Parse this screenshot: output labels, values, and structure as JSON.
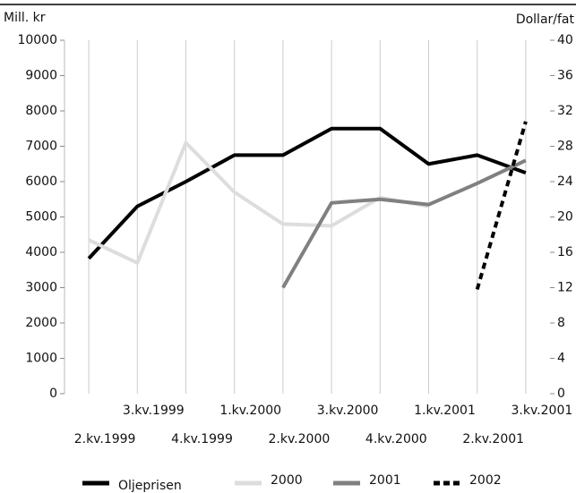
{
  "chart_data": {
    "type": "line",
    "y_label": "Mill. kr",
    "y2_label": "Dollar/fat",
    "categories": [
      "2.kv.1999",
      "3.kv.1999",
      "4.kv.1999",
      "1.kv.2000",
      "2.kv.2000",
      "3.kv.2000",
      "4.kv.2000",
      "1.kv.2001",
      "2.kv.2001",
      "3.kv.2001"
    ],
    "series": [
      {
        "name": "Oljeprisen",
        "color": "#000000",
        "axis": "y2",
        "values": [
          15.3,
          21.2,
          24,
          27,
          27,
          30,
          30,
          26,
          27,
          25
        ]
      },
      {
        "name": "2000",
        "color": "#dddddd",
        "values": [
          4350,
          3700,
          7100,
          5700,
          4800,
          4750,
          5550,
          5300,
          null,
          null
        ]
      },
      {
        "name": "2001",
        "color": "#808080",
        "values": [
          null,
          null,
          null,
          null,
          3000,
          5400,
          5500,
          5350,
          5950,
          6600
        ]
      },
      {
        "name": "2002",
        "color": "#000000",
        "dashed": true,
        "values": [
          null,
          null,
          null,
          null,
          null,
          null,
          null,
          null,
          2950,
          7700
        ]
      }
    ],
    "ylim": [
      0,
      10000
    ],
    "yticks": [
      0,
      1000,
      2000,
      3000,
      4000,
      5000,
      6000,
      7000,
      8000,
      9000,
      10000
    ],
    "y2lim": [
      0,
      40
    ],
    "y2ticks": [
      0,
      4,
      8,
      12,
      16,
      20,
      24,
      28,
      32,
      36,
      40
    ]
  }
}
